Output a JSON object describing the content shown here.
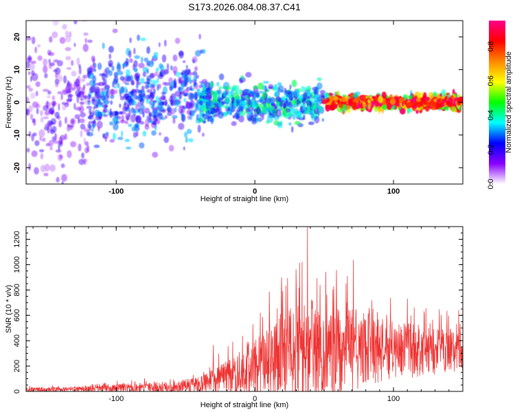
{
  "title": "S173.2026.084.08.37.C41",
  "chart_data": [
    {
      "type": "heatmap",
      "id": "spectrogram",
      "xlabel": "Height of straight line (km)",
      "ylabel": "Frequency (Hz)",
      "xlim": [
        -165,
        150
      ],
      "ylim": [
        -25,
        25
      ],
      "xticks": [
        -100,
        0,
        100
      ],
      "xtick_labels": [
        "-100",
        "0",
        "100"
      ],
      "yticks": [
        -20,
        -10,
        0,
        10,
        20
      ],
      "ytick_labels": [
        "-20",
        "-10",
        "0",
        "10",
        "20"
      ],
      "colorbar": {
        "label": "Normalized spectral amplitude",
        "range": [
          0,
          0.95
        ],
        "ticks": [
          0.0,
          0.2,
          0.4,
          0.6,
          0.8
        ],
        "tick_labels": [
          "0.0",
          "0.2",
          "0.4",
          "0.6",
          "0.8"
        ],
        "colormap": [
          "#ffffff",
          "#8800ff",
          "#0000ff",
          "#00ffff",
          "#00ff00",
          "#ffff00",
          "#ff8800",
          "#ff0000",
          "#ff0088"
        ]
      },
      "regions": [
        {
          "x": [
            -165,
            -120
          ],
          "freq_center": 0,
          "freq_spread": 25,
          "amplitude": [
            0.05,
            0.2
          ],
          "description": "diffuse purple noise"
        },
        {
          "x": [
            -120,
            -35
          ],
          "freq_center": 2,
          "freq_spread": 12,
          "amplitude": [
            0.1,
            0.35
          ]
        },
        {
          "x": [
            -40,
            50
          ],
          "freq_center": 0,
          "freq_spread": 5,
          "amplitude": [
            0.15,
            0.45
          ]
        },
        {
          "x": [
            50,
            150
          ],
          "freq_center": 0,
          "freq_spread": 2,
          "amplitude": [
            0.3,
            0.95
          ]
        }
      ]
    },
    {
      "type": "line",
      "id": "snr",
      "xlabel": "Height of straight line (km)",
      "ylabel": "SNR (10 * v/v)",
      "xlim": [
        -165,
        150
      ],
      "ylim": [
        0,
        1300
      ],
      "xticks": [
        -100,
        0,
        100
      ],
      "xtick_labels": [
        "-100",
        "0",
        "100"
      ],
      "yticks": [
        0,
        200,
        400,
        600,
        800,
        1000,
        1200
      ],
      "ytick_labels": [
        "0",
        "200",
        "400",
        "600",
        "800",
        "1000",
        "1200"
      ],
      "color": "#ee3333",
      "envelope": [
        {
          "x": -165,
          "base": 15,
          "peak": 40
        },
        {
          "x": -120,
          "base": 20,
          "peak": 50
        },
        {
          "x": -100,
          "base": 25,
          "peak": 70
        },
        {
          "x": -60,
          "base": 35,
          "peak": 100
        },
        {
          "x": -40,
          "base": 50,
          "peak": 140
        },
        {
          "x": -20,
          "base": 110,
          "peak": 300
        },
        {
          "x": 0,
          "base": 180,
          "peak": 500
        },
        {
          "x": 20,
          "base": 250,
          "peak": 800
        },
        {
          "x": 40,
          "base": 300,
          "peak": 900
        },
        {
          "x": 70,
          "base": 330,
          "peak": 800
        },
        {
          "x": 100,
          "base": 320,
          "peak": 650
        },
        {
          "x": 150,
          "base": 320,
          "peak": 550
        }
      ],
      "spikes": [
        {
          "x": -30,
          "y": 365
        },
        {
          "x": 19,
          "y": 780
        },
        {
          "x": 30,
          "y": 820
        },
        {
          "x": 34,
          "y": 1020
        },
        {
          "x": 38,
          "y": 1300
        },
        {
          "x": 52,
          "y": 760
        },
        {
          "x": 71,
          "y": 1035
        },
        {
          "x": 110,
          "y": 730
        },
        {
          "x": 147,
          "y": 640
        }
      ]
    }
  ]
}
